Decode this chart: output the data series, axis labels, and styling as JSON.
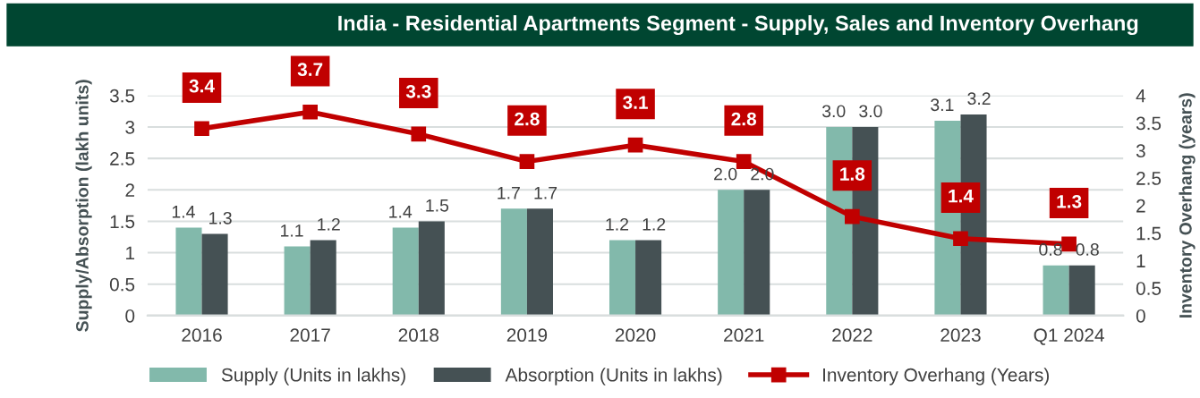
{
  "chart_data": {
    "type": "bar",
    "title": "India - Residential Apartments Segment - Supply, Sales and Inventory Overhang",
    "ylabel": "Supply/Absorption (lakh units)",
    "y2label": "Inventory Overhang (years)",
    "categories": [
      "2016",
      "2017",
      "2018",
      "2019",
      "2020",
      "2021",
      "2022",
      "2023",
      "Q1 2024"
    ],
    "series": [
      {
        "name": "Supply (Units in lakhs)",
        "color": "#82b9ab",
        "values": [
          1.4,
          1.1,
          1.4,
          1.7,
          1.2,
          2.0,
          3.0,
          3.1,
          0.8
        ],
        "value_labels": [
          "1.4",
          "1.1",
          "1.4",
          "1.7",
          "1.2",
          "2.0",
          "3.0",
          "3.1",
          "0.8"
        ]
      },
      {
        "name": "Absorption (Units in lakhs)",
        "color": "#455154",
        "values": [
          1.3,
          1.2,
          1.5,
          1.7,
          1.2,
          2.0,
          3.0,
          3.2,
          0.8
        ],
        "value_labels": [
          "1.3",
          "1.2",
          "1.5",
          "1.7",
          "1.2",
          "2.0",
          "3.0",
          "3.2",
          "0.8"
        ]
      },
      {
        "name": "Inventory Overhang (Years)",
        "type": "line",
        "axis": "y2",
        "color": "#c00000",
        "values": [
          3.4,
          3.7,
          3.3,
          2.8,
          3.1,
          2.8,
          1.8,
          1.4,
          1.3
        ]
      }
    ],
    "ylim": [
      0,
      3.5
    ],
    "yticks": [
      0,
      0.5,
      1,
      1.5,
      2,
      2.5,
      3,
      3.5
    ],
    "y2lim": [
      0,
      4
    ],
    "y2ticks": [
      0,
      0.5,
      1,
      1.5,
      2,
      2.5,
      3,
      3.5,
      4
    ],
    "data_labels": true,
    "grid": "y",
    "legend": "bottom",
    "marker": "square",
    "line_style": "solid"
  }
}
